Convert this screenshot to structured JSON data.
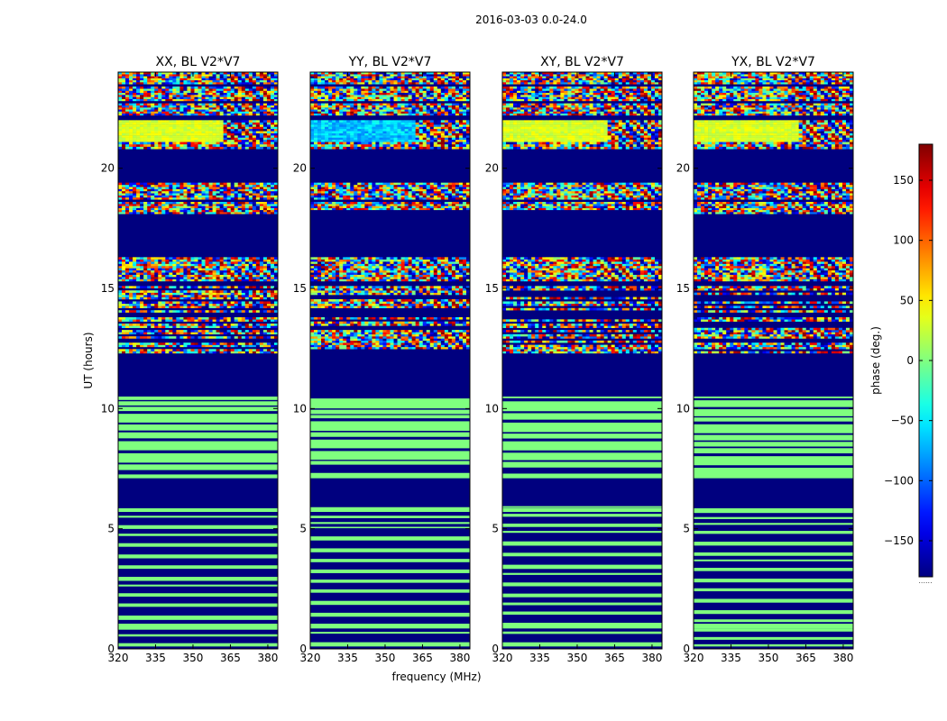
{
  "figure": {
    "suptitle": "2016-03-03 0.0-24.0",
    "xlabel": "frequency (MHz)",
    "ylabel": "UT (hours)"
  },
  "colorbar": {
    "label": "phase (deg.)",
    "range": [
      -180,
      180
    ],
    "ticks": [
      -150,
      -100,
      -50,
      0,
      50,
      100,
      150
    ],
    "tick_labels": [
      "−150",
      "−100",
      "−50",
      "0",
      "50",
      "100",
      "150"
    ],
    "bottom_marker": "......",
    "colormap": "jet",
    "colormap_stops": [
      "#00007f",
      "#0000ff",
      "#007fff",
      "#00ffff",
      "#7fff7f",
      "#ffff00",
      "#ff7f00",
      "#ff0000",
      "#7f0000"
    ]
  },
  "chart_data": [
    {
      "type": "heatmap",
      "title": "XX, BL V2*V7",
      "xlabel": "frequency (MHz)",
      "ylabel": "UT (hours)",
      "xlim": [
        320,
        384
      ],
      "ylim": [
        0,
        24
      ],
      "xticks": [
        320,
        335,
        350,
        365,
        380
      ],
      "yticks": [
        0,
        5,
        10,
        15,
        20
      ],
      "value_label": "phase (deg.)",
      "visual_summary": "Rows: 0-10.5 h mostly near 0 deg (green) with flagged blue gaps; 10.5-12.4 h flagged; 12.4-16.3 h noisy phase with fringe patterns; 16.3-18.1 h flagged; 18.1-19.4 h noisy with fringes near 360-384 MHz; 19.4-20.8 h flagged; 20.8-24 h noisy data, smooth green region at low frequencies 21-22 h."
    },
    {
      "type": "heatmap",
      "title": "YY, BL V2*V7",
      "xlabel": "frequency (MHz)",
      "ylabel": "UT (hours)",
      "xlim": [
        320,
        384
      ],
      "ylim": [
        0,
        24
      ],
      "xticks": [
        320,
        335,
        350,
        365,
        380
      ],
      "yticks": [
        0,
        5,
        10,
        15,
        20
      ],
      "value_label": "phase (deg.)",
      "visual_summary": "Same flagged time blocks as XX; 21-22 h block shows blue/cyan low-frequency region."
    },
    {
      "type": "heatmap",
      "title": "XY, BL V2*V7",
      "xlabel": "frequency (MHz)",
      "ylabel": "UT (hours)",
      "xlim": [
        320,
        384
      ],
      "ylim": [
        0,
        24
      ],
      "xticks": [
        320,
        335,
        350,
        365,
        380
      ],
      "yticks": [
        0,
        5,
        10,
        15,
        20
      ],
      "value_label": "phase (deg.)",
      "visual_summary": "Same flagged time blocks; noisy phase throughout unflagged blocks above 12.4 h."
    },
    {
      "type": "heatmap",
      "title": "YX, BL V2*V7",
      "xlabel": "frequency (MHz)",
      "ylabel": "UT (hours)",
      "xlim": [
        320,
        384
      ],
      "ylim": [
        0,
        24
      ],
      "xticks": [
        320,
        335,
        350,
        365,
        380
      ],
      "yticks": [
        0,
        5,
        10,
        15,
        20
      ],
      "value_label": "phase (deg.)",
      "visual_summary": "Same flagged time blocks; noisy phase with fringe patterns above 12.4 h."
    }
  ]
}
